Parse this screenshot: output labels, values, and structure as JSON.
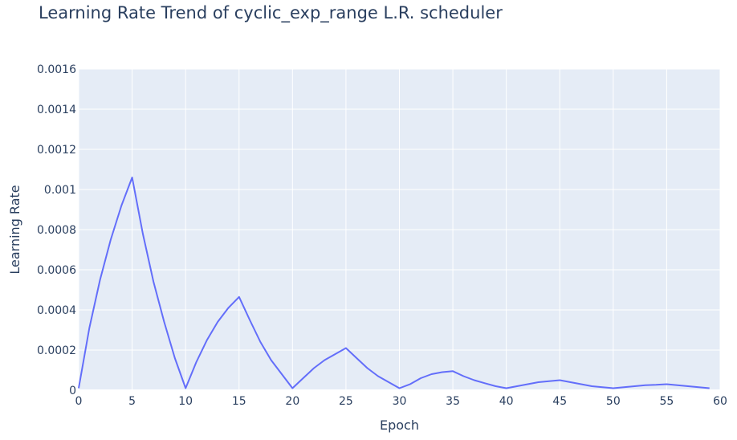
{
  "chart_data": {
    "type": "line",
    "title": "Learning Rate Trend of cyclic_exp_range L.R. scheduler",
    "xlabel": "Epoch",
    "ylabel": "Learning Rate",
    "xlim": [
      0,
      60
    ],
    "ylim": [
      0,
      0.0016
    ],
    "x_ticks": [
      0,
      5,
      10,
      15,
      20,
      25,
      30,
      35,
      40,
      45,
      50,
      55,
      60
    ],
    "y_ticks": [
      {
        "value": 0,
        "label": "0"
      },
      {
        "value": 0.0002,
        "label": "0.0002"
      },
      {
        "value": 0.0004,
        "label": "0.0004"
      },
      {
        "value": 0.0006,
        "label": "0.0006"
      },
      {
        "value": 0.0008,
        "label": "0.0008"
      },
      {
        "value": 0.001,
        "label": "0.001"
      },
      {
        "value": 0.0012,
        "label": "0.0012"
      },
      {
        "value": 0.0014,
        "label": "0.0014"
      },
      {
        "value": 0.0016,
        "label": "0.0016"
      }
    ],
    "grid": true,
    "colors": {
      "line": "#636efa",
      "plot_bg": "#e5ecf6",
      "grid": "#ffffff",
      "text": "#2a3f5f"
    },
    "series": [
      {
        "x": [
          0,
          1,
          2,
          3,
          4,
          5,
          6,
          7,
          8,
          9,
          10,
          11,
          12,
          13,
          14,
          15,
          16,
          17,
          18,
          19,
          20,
          21,
          22,
          23,
          24,
          25,
          26,
          27,
          28,
          29,
          30,
          31,
          32,
          33,
          34,
          35,
          36,
          37,
          38,
          39,
          40,
          41,
          42,
          43,
          44,
          45,
          46,
          47,
          48,
          49,
          50,
          51,
          52,
          53,
          54,
          55,
          56,
          57,
          58,
          59
        ],
        "y": [
          1e-05,
          0.00031,
          0.00055,
          0.00075,
          0.00092,
          0.00106,
          0.00078,
          0.00054,
          0.00034,
          0.00016,
          1e-05,
          0.00014,
          0.00025,
          0.00034,
          0.00041,
          0.000465,
          0.00035,
          0.00024,
          0.00015,
          8e-05,
          1e-05,
          6e-05,
          0.00011,
          0.00015,
          0.00018,
          0.00021,
          0.00016,
          0.00011,
          7e-05,
          4e-05,
          1e-05,
          3e-05,
          6e-05,
          8e-05,
          9e-05,
          9.5e-05,
          7e-05,
          5e-05,
          3.5e-05,
          2e-05,
          1e-05,
          2e-05,
          3e-05,
          4e-05,
          4.5e-05,
          5e-05,
          4e-05,
          3e-05,
          2e-05,
          1.5e-05,
          1e-05,
          1.5e-05,
          2e-05,
          2.5e-05,
          2.7e-05,
          3e-05,
          2.5e-05,
          2e-05,
          1.5e-05,
          1e-05
        ]
      }
    ]
  }
}
